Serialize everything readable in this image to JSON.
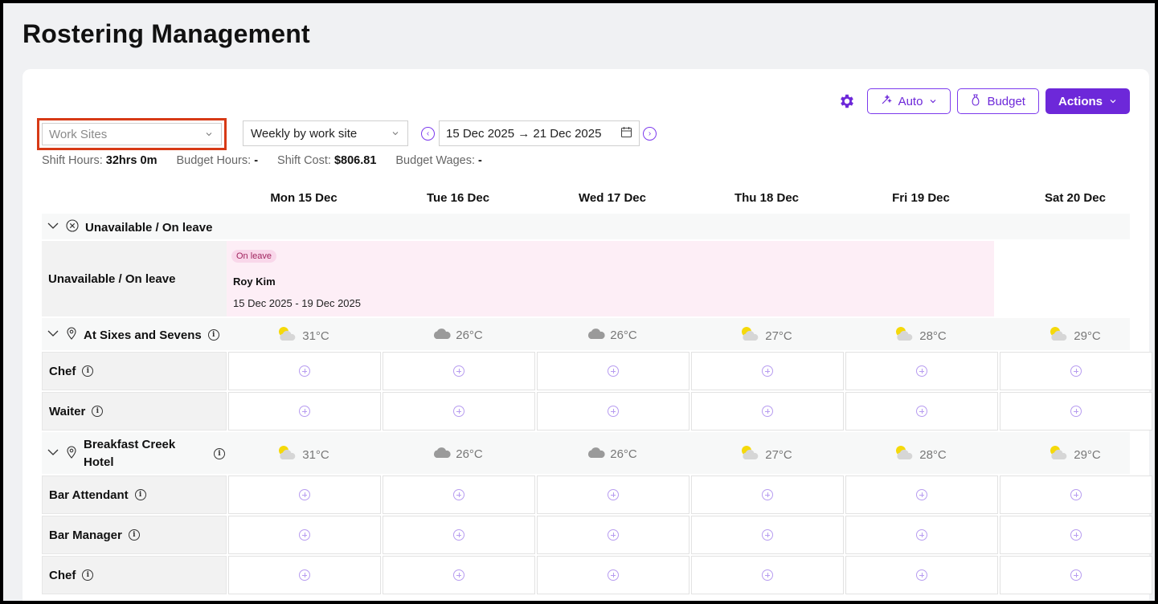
{
  "page": {
    "title": "Rostering Management"
  },
  "toolbar": {
    "auto_label": "Auto",
    "budget_label": "Budget",
    "actions_label": "Actions",
    "accent_color": "#6d28d9"
  },
  "filters": {
    "work_sites_placeholder": "Work Sites",
    "view_mode": "Weekly by work site",
    "date_range": "15 Dec 2025 → 21 Dec 2025"
  },
  "stats": {
    "shift_hours_label": "Shift Hours:",
    "shift_hours_value": "32hrs 0m",
    "budget_hours_label": "Budget Hours:",
    "budget_hours_value": "-",
    "shift_cost_label": "Shift Cost:",
    "shift_cost_value": "$806.81",
    "budget_wages_label": "Budget Wages:",
    "budget_wages_value": "-"
  },
  "days": [
    "Mon 15 Dec",
    "Tue 16 Dec",
    "Wed 17 Dec",
    "Thu 18 Dec",
    "Fri 19 Dec",
    "Sat 20 Dec"
  ],
  "leave_group": {
    "title": "Unavailable / On leave",
    "row_label": "Unavailable / On leave",
    "badge": "On leave",
    "person": "Roy Kim",
    "dates": "15 Dec 2025 - 19 Dec 2025"
  },
  "sites": [
    {
      "name": "At Sixes and Sevens",
      "weather": [
        {
          "icon": "sun-cloud-icon",
          "temp": "31°C"
        },
        {
          "icon": "cloud-icon",
          "temp": "26°C"
        },
        {
          "icon": "cloud-icon",
          "temp": "26°C"
        },
        {
          "icon": "sun-cloud-icon",
          "temp": "27°C"
        },
        {
          "icon": "sun-cloud-icon",
          "temp": "28°C"
        },
        {
          "icon": "sun-cloud-icon",
          "temp": "29°C"
        }
      ],
      "roles": [
        "Chef",
        "Waiter"
      ]
    },
    {
      "name_line1": "Breakfast Creek",
      "name_line2": "Hotel",
      "weather": [
        {
          "icon": "sun-cloud-icon",
          "temp": "31°C"
        },
        {
          "icon": "cloud-icon",
          "temp": "26°C"
        },
        {
          "icon": "cloud-icon",
          "temp": "26°C"
        },
        {
          "icon": "sun-cloud-icon",
          "temp": "27°C"
        },
        {
          "icon": "sun-cloud-icon",
          "temp": "28°C"
        },
        {
          "icon": "sun-cloud-icon",
          "temp": "29°C"
        }
      ],
      "roles": [
        "Bar Attendant",
        "Bar Manager",
        "Chef"
      ]
    }
  ]
}
